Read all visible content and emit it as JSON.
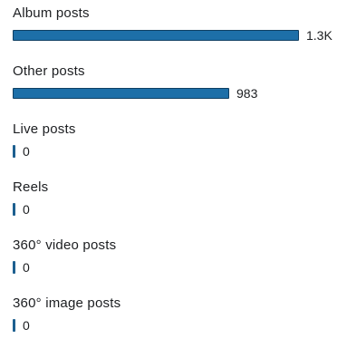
{
  "chart_data": {
    "type": "bar",
    "orientation": "horizontal",
    "categories": [
      "Album posts",
      "Other posts",
      "Live posts",
      "Reels",
      "360° video posts",
      "360° image posts"
    ],
    "values": [
      1300,
      983,
      0,
      0,
      0,
      0
    ],
    "value_labels": [
      "1.3K",
      "983",
      "0",
      "0",
      "0",
      "0"
    ],
    "bar_color": "#1d6fa8",
    "bar_border_color": "#0f3f63",
    "xlim": [
      0,
      1300
    ],
    "grid": false
  }
}
